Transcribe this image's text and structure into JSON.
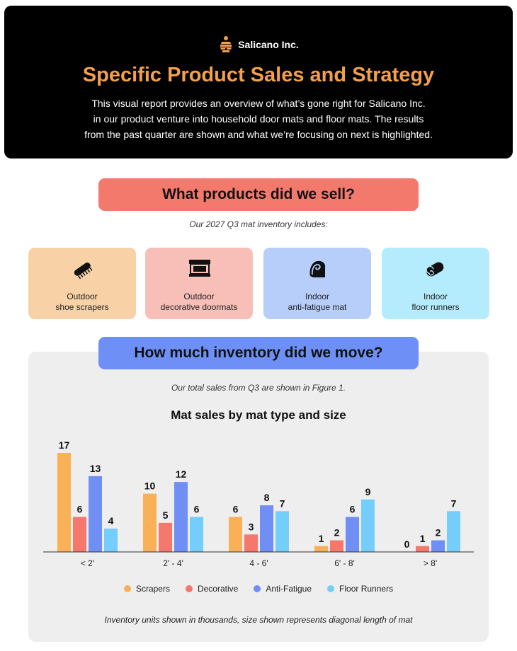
{
  "header": {
    "brand": "Salicano Inc.",
    "title": "Specific Product Sales and Strategy",
    "intro_lines": [
      "This visual report provides an overview of what’s gone right for Salicano Inc.",
      "in our product venture into household door mats and floor mats. The results",
      "from the past quarter are shown and what we’re focusing on next is highlighted."
    ]
  },
  "products": {
    "heading": "What products did we sell?",
    "subheading": "Our 2027 Q3 mat inventory includes:",
    "cards": [
      {
        "line1": "Outdoor",
        "line2": "shoe scrapers",
        "icon": "brush-icon"
      },
      {
        "line1": "Outdoor",
        "line2": "decorative doormats",
        "icon": "doormat-icon"
      },
      {
        "line1": "Indoor",
        "line2": "anti-fatigue mat",
        "icon": "curled-mat-icon"
      },
      {
        "line1": "Indoor",
        "line2": "floor runners",
        "icon": "rolled-mat-icon"
      }
    ]
  },
  "inventory": {
    "heading": "How much inventory did we move?",
    "subheading": "Our total sales from Q3 are shown in Figure 1.",
    "footnote": "Inventory units shown in thousands, size shown represents diagonal length of mat"
  },
  "chart_data": {
    "type": "bar",
    "title": "Mat sales by mat type and size",
    "categories": [
      "< 2'",
      "2' - 4'",
      "4 - 6'",
      "6' - 8'",
      "> 8'"
    ],
    "series": [
      {
        "name": "Scrapers",
        "color": "#f9b057",
        "values": [
          17,
          10,
          6,
          1,
          0
        ]
      },
      {
        "name": "Decorative",
        "color": "#f6776b",
        "values": [
          6,
          5,
          3,
          2,
          1
        ]
      },
      {
        "name": "Anti-Fatigue",
        "color": "#6f8ff4",
        "values": [
          13,
          12,
          8,
          6,
          2
        ]
      },
      {
        "name": "Floor Runners",
        "color": "#74cdfb",
        "values": [
          4,
          6,
          7,
          9,
          7
        ]
      }
    ],
    "ylim": [
      0,
      17
    ],
    "grid": false,
    "legend_position": "bottom"
  }
}
